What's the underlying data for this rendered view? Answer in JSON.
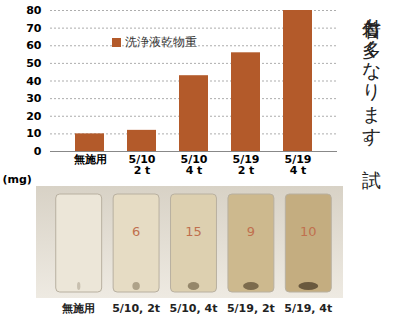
{
  "chart_data": {
    "type": "bar",
    "categories": [
      "無施用",
      "5/10\n2 t",
      "5/10\n4 t",
      "5/19\n2 t",
      "5/19\n4 t"
    ],
    "series": [
      {
        "name": "洗浄液乾物重",
        "color": "#b35a2a",
        "values": [
          10,
          12,
          43,
          56,
          80
        ]
      }
    ],
    "y_label": "(mg)",
    "ylim": [
      0,
      80
    ],
    "yticks": [
      0,
      10,
      20,
      30,
      40,
      50,
      60,
      70,
      80
    ],
    "grid": true,
    "legend": "upper left"
  },
  "photo": {
    "labels": [
      "無施用",
      "5/10, 2t",
      "5/10, 4t",
      "5/19, 2t",
      "5/19, 4t"
    ],
    "cup_numbers": [
      null,
      "6",
      "15",
      "9",
      "10"
    ]
  },
  "side_text": "付着も多くなります。試"
}
